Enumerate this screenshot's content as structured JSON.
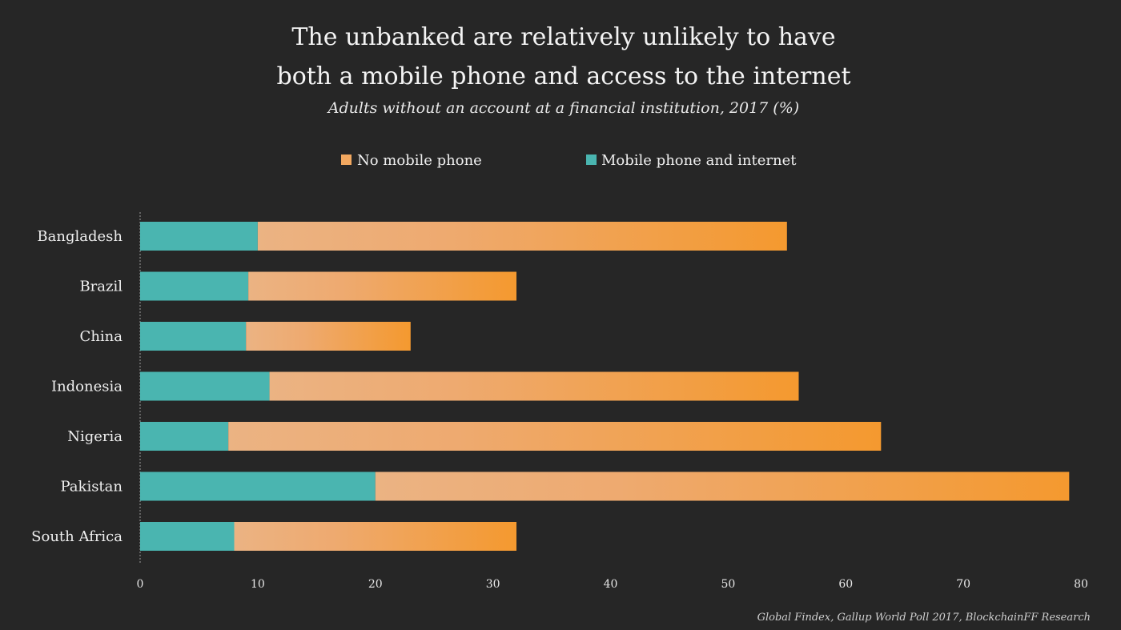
{
  "colors": {
    "background": "#262626",
    "mobile_internet": "#4ab5b0",
    "no_mobile_light": "#ebb383",
    "no_mobile_dark": "#f4992f",
    "axis": "#9a9a9a"
  },
  "chart_data": {
    "type": "bar",
    "orientation": "horizontal",
    "stacked": true,
    "title_lines": [
      "The unbanked are relatively unlikely to have",
      "both a mobile phone and access to the internet"
    ],
    "subtitle": "Adults without an account at a financial institution, 2017 (%)",
    "source": "Global Findex, Gallup World Poll 2017, BlockchainFF Research",
    "categories": [
      "Bangladesh",
      "Brazil",
      "China",
      "Indonesia",
      "Nigeria",
      "Pakistan",
      "South Africa"
    ],
    "series": [
      {
        "name": "Mobile phone and internet",
        "color": "#4ab5b0",
        "values": [
          10,
          9.2,
          9,
          11,
          7.5,
          20,
          8
        ]
      },
      {
        "name": "No mobile phone",
        "color": "#f4992f",
        "values": [
          45,
          22.8,
          14,
          45,
          55.5,
          59,
          24
        ]
      }
    ],
    "legend_order": [
      "No mobile phone",
      "Mobile phone and internet"
    ],
    "legend_position": "top",
    "xlim": [
      0,
      80
    ],
    "xticks": [
      0,
      10,
      20,
      30,
      40,
      50,
      60,
      70,
      80
    ],
    "xtick_labels": [
      "0",
      "10",
      "20",
      "30",
      "40",
      "50",
      "60",
      "70",
      "80"
    ],
    "grid": false
  }
}
